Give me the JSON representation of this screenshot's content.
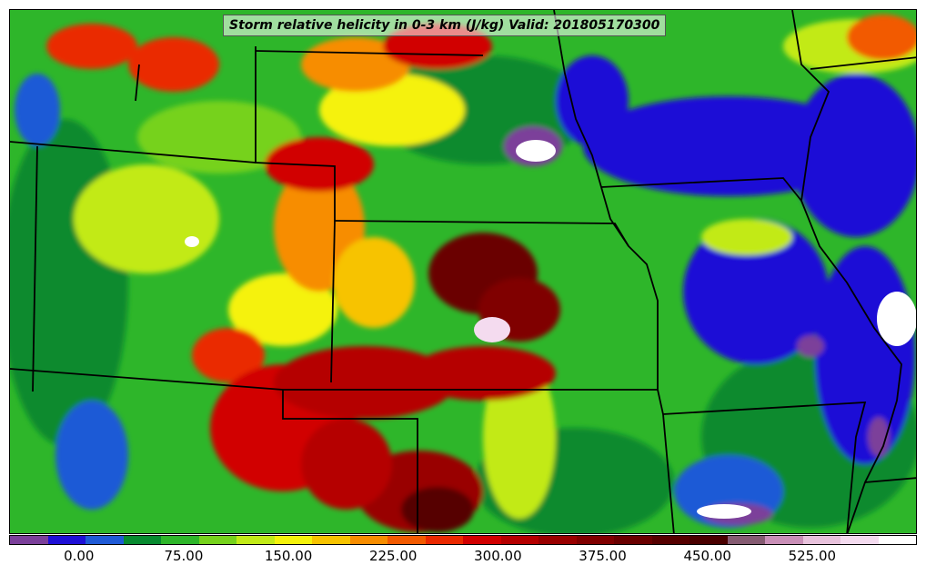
{
  "title": "Storm relative helicity in 0-3 km (J/kg) Valid: 201805170300",
  "colorbar": {
    "ticks": [
      "0.00",
      "75.00",
      "150.00",
      "225.00",
      "300.00",
      "375.00",
      "450.00",
      "525.00"
    ],
    "tick_values": [
      0,
      75,
      150,
      225,
      300,
      375,
      450,
      525
    ],
    "range": [
      -50,
      600
    ],
    "colors": [
      "#7b3f9a",
      "#1e0fd6",
      "#1f5ad6",
      "#078a2f",
      "#2eb62a",
      "#76d21c",
      "#c2ea18",
      "#f5f20c",
      "#f7c300",
      "#f78d00",
      "#f25a00",
      "#ea2900",
      "#d10000",
      "#b50000",
      "#990000",
      "#800000",
      "#6a0000",
      "#560000",
      "#4a0000",
      "#855b72",
      "#c98fb7",
      "#e8c2dc",
      "#f4dbef",
      "#ffffff"
    ]
  },
  "colors": {
    "state_lines": "#000000",
    "background_field": "#2eb62a"
  }
}
